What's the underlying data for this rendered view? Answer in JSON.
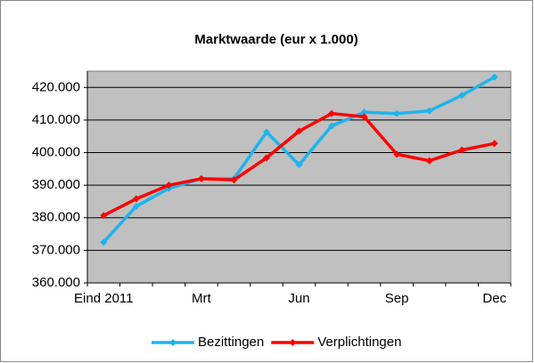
{
  "chart_data": {
    "type": "line",
    "title": "Marktwaarde (eur x 1.000)",
    "categories": [
      "Eind 2011",
      null,
      null,
      "Mrt",
      null,
      null,
      "Jun",
      null,
      null,
      "Sep",
      null,
      null,
      "Dec"
    ],
    "series": [
      {
        "name": "Bezittingen",
        "color": "#1fb4ec",
        "values": [
          372500,
          383500,
          389000,
          392000,
          392000,
          406300,
          396300,
          408200,
          412400,
          412000,
          412800,
          417600,
          423200
        ]
      },
      {
        "name": "Verplichtingen",
        "color": "#ff0000",
        "values": [
          380700,
          385800,
          390000,
          392000,
          391600,
          398400,
          406600,
          412000,
          411000,
          399500,
          397500,
          400800,
          402800
        ]
      }
    ],
    "ylim": [
      360000,
      425000
    ],
    "yticks": [
      {
        "value": 360000,
        "label": "360.000"
      },
      {
        "value": 370000,
        "label": "370.000"
      },
      {
        "value": 380000,
        "label": "380.000"
      },
      {
        "value": 390000,
        "label": "390.000"
      },
      {
        "value": 400000,
        "label": "400.000"
      },
      {
        "value": 410000,
        "label": "410.000"
      },
      {
        "value": 420000,
        "label": "420.000"
      }
    ],
    "grid": true,
    "legend": "bottom",
    "plot_background": "#c0c0c0"
  }
}
